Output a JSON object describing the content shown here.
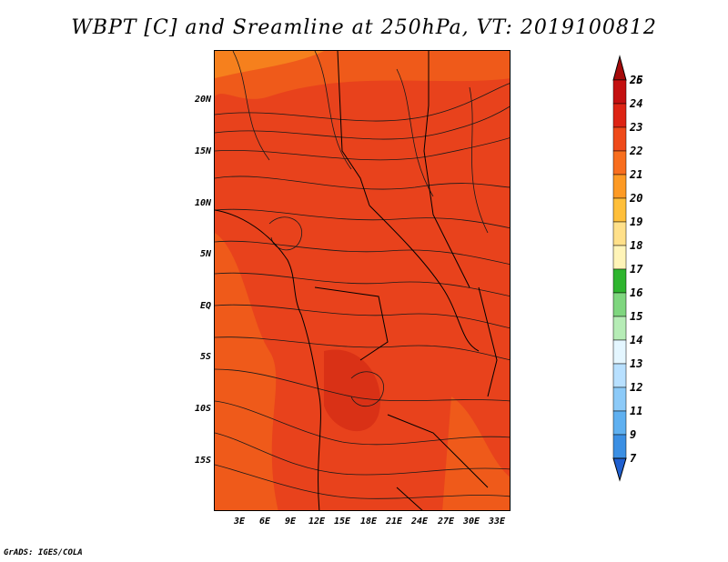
{
  "title": "WBPT [C] and Sreamline at 250hPa, VT: 2019100812",
  "credit": "GrADS: IGES/COLA",
  "map": {
    "lat_labels": [
      "20N",
      "15N",
      "10N",
      "5N",
      "EQ",
      "5S",
      "10S",
      "15S"
    ],
    "lon_labels": [
      "3E",
      "6E",
      "9E",
      "12E",
      "15E",
      "18E",
      "21E",
      "24E",
      "27E",
      "30E",
      "33E"
    ],
    "fill_colors": {
      "main": "#e8421c",
      "warm": "#ef5a1a",
      "light": "#f6801d",
      "hot": "#d93116"
    }
  },
  "colorbar": {
    "labels": [
      "26",
      "25",
      "24",
      "23",
      "22",
      "21",
      "20",
      "19",
      "18",
      "17",
      "16",
      "15",
      "14",
      "13",
      "12",
      "11",
      "9",
      "7"
    ],
    "colors": [
      "#a50a0a",
      "#c41010",
      "#dd2414",
      "#ef4a1a",
      "#f86e1e",
      "#fd9a24",
      "#ffbf3a",
      "#ffe08a",
      "#fff4b8",
      "#2fb52f",
      "#7fd67f",
      "#b6ecb6",
      "#e4f6ff",
      "#b8e0ff",
      "#8ccaf8",
      "#5fb0f0",
      "#3b8fe3",
      "#2060d0"
    ]
  }
}
